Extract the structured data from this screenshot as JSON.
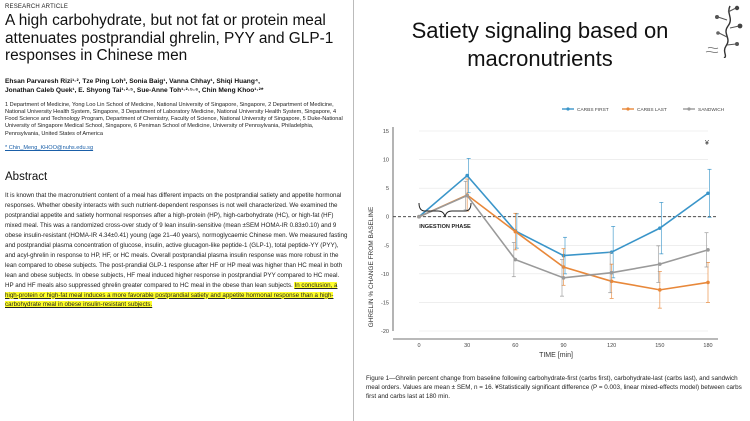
{
  "paper": {
    "label": "RESEARCH ARTICLE",
    "title": "A high carbohydrate, but not fat or protein meal attenuates postprandial ghrelin, PYY and GLP-1 responses in Chinese men",
    "authors_line1": "Ehsan Parvaresh Rizi¹·², Tze Ping Loh³, Sonia Baig¹, Vanna Chhay¹, Shiqi Huang⁴,",
    "authors_line2": "Jonathan Caleb Quek¹, E. Shyong Tai¹·²·⁵, Sue-Anne Toh¹·²·⁵·⁶, Chin Meng Khoo¹·²*",
    "affiliations": "1 Department of Medicine, Yong Loo Lin School of Medicine, National University of Singapore, Singapore, 2 Department of Medicine, National University Health System, Singapore, 3 Department of Laboratory Medicine, National University Health System, Singapore, 4 Food Science and Technology Program, Department of Chemistry, Faculty of Science, National University of Singapore, 5 Duke-National University of Singapore Medical School, Singapore, 6 Peniman School of Medicine, University of Pennsylvania, Philadelphia, Pennsylvania, United States of America",
    "email": "* Chin_Meng_KHOO@nuhs.edu.sg",
    "abstract_heading": "Abstract",
    "abstract_text": "It is known that the macronutrient content of a meal has different impacts on the postprandial satiety and appetite hormonal responses. Whether obesity interacts with such nutrient-dependent responses is not well characterized. We examined the postprandial appetite and satiety hormonal responses after a high-protein (HP), high-carbohydrate (HC), or high-fat (HF) mixed meal. This was a randomized cross-over study of 9 lean insulin-sensitive (mean ±SEM HOMA-IR 0.83±0.10) and 9 obese insulin-resistant (HOMA-IR 4.34±0.41) young (age 21–40 years), normoglycaemic Chinese men. We measured fasting and postprandial plasma concentration of glucose, insulin, active glucagon-like peptide-1 (GLP-1), total peptide-YY (PYY), and acyl-ghrelin in response to HP, HF, or HC meals. Overall postprandial plasma insulin response was more robust in the lean compared to obese subjects. The post-prandial GLP-1 response after HF or HP meal was higher than HC meal in both lean and obese subjects. In obese subjects, HF meal induced higher response in postprandial PYY compared to HC meal. HP and HF meals also suppressed ghrelin greater compared to HC meal in the obese than lean subjects. ",
    "abstract_highlight": "In conclusion, a high-protein or high-fat meal induces a more favorable postprandial satiety and appetite hormonal response than a high-carbohydrate meal in obese insulin-resistant subjects."
  },
  "slide": {
    "title_line1": "Satiety signaling based on",
    "title_line2": "macronutrients"
  },
  "chart_data": {
    "type": "line",
    "xlabel": "TIME [min]",
    "ylabel": "GHRELIN % CHANGE FROM BASELINE",
    "x": [
      0,
      30,
      60,
      90,
      120,
      150,
      180
    ],
    "xticks": [
      "0",
      "30",
      "60",
      "90",
      "120",
      "150",
      "180"
    ],
    "yticks": [
      "15",
      "10",
      "5",
      "0",
      "-5",
      "-10",
      "-15",
      "-20"
    ],
    "ylim": [
      -20,
      15
    ],
    "xlim": [
      0,
      180
    ],
    "legend_position": "top-right",
    "series": [
      {
        "name": "CARBS FIRST",
        "color": "#3a95c9",
        "values": [
          0,
          7.2,
          -2.5,
          -6.8,
          -6.2,
          -2.0,
          4.1
        ],
        "err": [
          0,
          3.0,
          3.0,
          3.2,
          4.5,
          4.5,
          4.2
        ]
      },
      {
        "name": "CARBS LAST",
        "color": "#e8883a",
        "values": [
          0,
          3.8,
          -2.6,
          -8.8,
          -11.3,
          -12.8,
          -11.5
        ],
        "err": [
          0,
          2.8,
          3.2,
          3.2,
          3.0,
          3.2,
          3.5
        ]
      },
      {
        "name": "SANDWICH",
        "color": "#9a9a9a",
        "values": [
          0,
          3.7,
          -7.5,
          -10.7,
          -9.8,
          -8.3,
          -5.8
        ],
        "err": [
          0,
          2.5,
          3.0,
          3.2,
          3.5,
          3.2,
          3.0
        ]
      }
    ],
    "annotation_text": "INGESTION PHASE",
    "significance_symbol": "¥"
  },
  "figure": {
    "caption": "Figure 1—Ghrelin percent change from baseline following carbohydrate-first (carbs first), carbohydrate-last (carbs last), and sandwich meal orders. Values are mean ± SEM, n = 16. ¥Statistically significant difference (P = 0.003, linear mixed-effects model) between carbs first and carbs last at 180 min."
  },
  "colors": {
    "highlight": "#ffff2a",
    "carbs_first": "#3a95c9",
    "carbs_last": "#e8883a",
    "sandwich": "#9a9a9a"
  }
}
